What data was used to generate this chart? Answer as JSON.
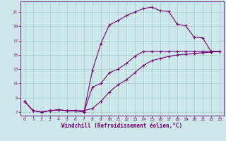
{
  "background_color": "#cce8e8",
  "grid_color": "#aacccc",
  "line_color": "#770077",
  "xlabel": "Windchill (Refroidissement éolien,°C)",
  "xlim": [
    -0.5,
    23.5
  ],
  "ylim": [
    6.5,
    22.5
  ],
  "yticks": [
    7,
    9,
    11,
    13,
    15,
    17,
    19,
    21
  ],
  "xticks": [
    0,
    1,
    2,
    3,
    4,
    5,
    6,
    7,
    8,
    9,
    10,
    11,
    12,
    13,
    14,
    15,
    16,
    17,
    18,
    19,
    20,
    21,
    22,
    23
  ],
  "line1_x": [
    0,
    1,
    2,
    3,
    4,
    5,
    6,
    7,
    8,
    9,
    10,
    11,
    12,
    13,
    14,
    15,
    16,
    17,
    18,
    19,
    20,
    21,
    22,
    23
  ],
  "line1_y": [
    8.5,
    7.2,
    7.0,
    7.2,
    7.3,
    7.2,
    7.2,
    7.2,
    7.5,
    8.5,
    9.8,
    10.8,
    11.5,
    12.5,
    13.5,
    14.2,
    14.5,
    14.8,
    15.0,
    15.1,
    15.2,
    15.3,
    15.4,
    15.5
  ],
  "line2_x": [
    0,
    1,
    2,
    3,
    4,
    5,
    6,
    7,
    8,
    9,
    10,
    11,
    12,
    13,
    14,
    15,
    16,
    17,
    18,
    19,
    20,
    21,
    22,
    23
  ],
  "line2_y": [
    8.5,
    7.2,
    7.0,
    7.2,
    7.3,
    7.2,
    7.2,
    7.0,
    12.8,
    16.6,
    19.2,
    19.8,
    20.5,
    21.0,
    21.5,
    21.7,
    21.2,
    21.1,
    19.3,
    19.1,
    17.5,
    17.4,
    15.5,
    15.5
  ],
  "line3_x": [
    0,
    1,
    2,
    3,
    4,
    5,
    6,
    7,
    8,
    9,
    10,
    11,
    12,
    13,
    14,
    15,
    16,
    17,
    18,
    19,
    20,
    21,
    22,
    23
  ],
  "line3_y": [
    8.5,
    7.2,
    7.0,
    7.2,
    7.3,
    7.2,
    7.2,
    7.0,
    10.5,
    11.0,
    12.5,
    13.0,
    13.8,
    14.8,
    15.5,
    15.5,
    15.5,
    15.5,
    15.5,
    15.5,
    15.5,
    15.5,
    15.5,
    15.5
  ]
}
